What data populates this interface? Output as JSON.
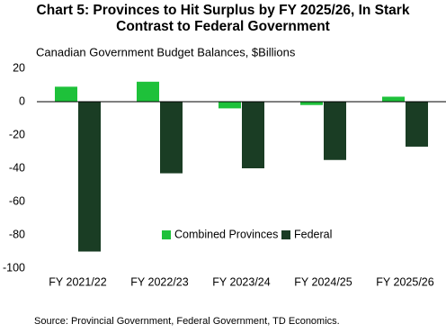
{
  "chart_data": {
    "type": "bar",
    "title": "Chart 5: Provinces to Hit Surplus by FY 2025/26, In Stark Contrast to Federal Government",
    "subtitle": "Canadian Government Budget Balances, $Billions",
    "source": "Source: Provincial Government, Federal Government, TD Economics.",
    "categories": [
      "FY 2021/22",
      "FY 2022/23",
      "FY 2023/24",
      "FY 2024/25",
      "FY 2025/26"
    ],
    "series": [
      {
        "name": "Combined Provinces",
        "color": "#1ec13a",
        "values": [
          9,
          12,
          -4,
          -2,
          3
        ]
      },
      {
        "name": "Federal",
        "color": "#1a3d24",
        "values": [
          -90,
          -43,
          -40,
          -35,
          -27
        ]
      }
    ],
    "ylim": [
      -100,
      20
    ],
    "yticks": [
      -100,
      -80,
      -60,
      -40,
      -20,
      0,
      20
    ],
    "grid": false,
    "legend": "center"
  }
}
